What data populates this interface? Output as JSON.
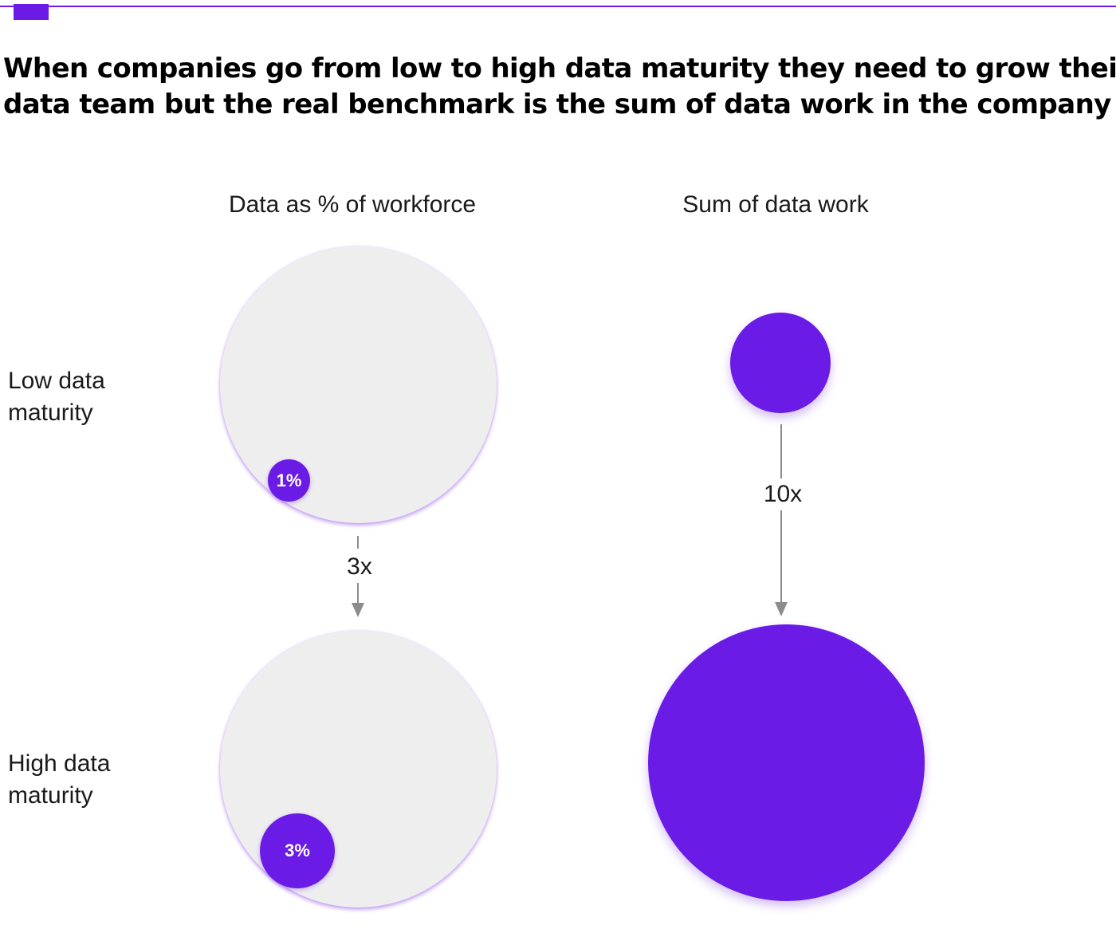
{
  "colors": {
    "accent": "#6a1be6",
    "ring_fill": "#efeeef",
    "arrow": "#8c8c8c"
  },
  "headline": {
    "line1": "When companies go from low to high data maturity they need to grow their",
    "line2": "data team but the real benchmark is the sum of data work in the company"
  },
  "columns": {
    "left": "Data as % of workforce",
    "right": "Sum of data work"
  },
  "rows": {
    "low": {
      "line1": "Low data",
      "line2": "maturity"
    },
    "high": {
      "line1": "High data",
      "line2": "maturity"
    }
  },
  "workforce": {
    "low_percent": "1%",
    "high_percent": "3%",
    "multiplier": "3x"
  },
  "data_work": {
    "multiplier": "10x"
  }
}
